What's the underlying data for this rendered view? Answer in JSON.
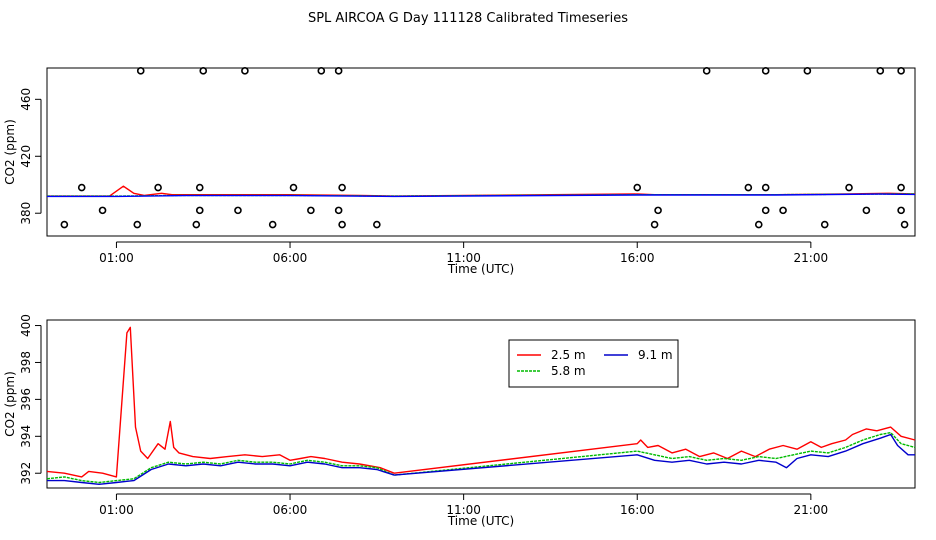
{
  "title": "SPL AIRCOA G  Day 111128  Calibrated Timeseries",
  "chart_data": [
    {
      "type": "scatter",
      "title": "SPL AIRCOA G  Day 111128  Calibrated Timeseries",
      "xlabel": "Time (UTC)",
      "ylabel": "CO2 (ppm)",
      "xlim": [
        -1,
        24
      ],
      "ylim": [
        364,
        482
      ],
      "xticks": [
        1,
        6,
        11,
        16,
        21
      ],
      "xtick_labels": [
        "01:00",
        "06:00",
        "11:00",
        "16:00",
        "21:00"
      ],
      "yticks": [
        380,
        420,
        460
      ],
      "ytick_labels": [
        "380",
        "420",
        "460"
      ],
      "outliers": {
        "x": [
          1.7,
          3.5,
          4.7,
          6.9,
          7.4,
          0.0,
          2.2,
          3.4,
          6.1,
          7.5,
          0.6,
          3.4,
          4.5,
          6.6,
          7.4,
          8.5,
          18.0,
          19.7,
          20.9,
          23.0,
          23.6,
          16.0,
          19.2,
          19.7,
          22.1,
          23.6,
          16.6,
          19.7,
          20.2,
          22.6,
          23.6,
          16.5,
          19.5,
          21.4,
          23.7
        ],
        "y": [
          480,
          480,
          480,
          480,
          480,
          398,
          398,
          398,
          398,
          398,
          382,
          382,
          382,
          382,
          382,
          372,
          480,
          480,
          480,
          480,
          480,
          398,
          398,
          398,
          398,
          398,
          382,
          382,
          382,
          382,
          382,
          372,
          372,
          372,
          372
        ]
      },
      "outliers_extra": {
        "x": [
          -0.5,
          1.6,
          3.3,
          5.5,
          7.5
        ],
        "y": [
          372,
          372,
          372,
          372,
          372
        ]
      },
      "series": [
        {
          "name": "2.5 m",
          "color": "#ff0000",
          "x": [
            -1.0,
            0.0,
            0.5,
            0.8,
            1.2,
            1.5,
            1.8,
            2.3,
            2.6,
            3.0,
            4.0,
            6.0,
            8.0,
            9.0,
            16.0,
            16.5,
            18.0,
            20.0,
            22.0,
            23.2,
            24.0
          ],
          "y": [
            392,
            392,
            392,
            392,
            399,
            394,
            392.5,
            394,
            393,
            393,
            393,
            393,
            392.5,
            392,
            393.5,
            393,
            393,
            393,
            393.5,
            394,
            393.5
          ]
        },
        {
          "name": "5.8 m",
          "color": "#00bb00",
          "x": [
            -1.0,
            1.0,
            3.0,
            6.0,
            9.0,
            16.0,
            20.0,
            23.0,
            24.0
          ],
          "y": [
            392,
            392,
            392.5,
            392.5,
            392,
            393,
            393,
            393.5,
            393.5
          ]
        },
        {
          "name": "9.1 m",
          "color": "#0000ff",
          "x": [
            -1.0,
            1.0,
            3.0,
            6.0,
            9.0,
            16.0,
            20.0,
            23.0,
            24.0
          ],
          "y": [
            391.8,
            391.8,
            392.4,
            392.4,
            391.8,
            392.8,
            392.8,
            393.4,
            393.2
          ]
        }
      ]
    },
    {
      "type": "line",
      "xlabel": "Time (UTC)",
      "ylabel": "CO2 (ppm)",
      "xlim": [
        -1,
        24
      ],
      "ylim": [
        391.2,
        400.3
      ],
      "xticks": [
        1,
        6,
        11,
        16,
        21
      ],
      "xtick_labels": [
        "01:00",
        "06:00",
        "11:00",
        "16:00",
        "21:00"
      ],
      "yticks": [
        392,
        394,
        396,
        398,
        400
      ],
      "ytick_labels": [
        "392",
        "394",
        "396",
        "398",
        "400"
      ],
      "legend_position": "top-center",
      "series": [
        {
          "name": "2.5 m",
          "color": "#ff0000",
          "x": [
            -1.0,
            -0.5,
            0.0,
            0.2,
            0.6,
            1.0,
            1.3,
            1.4,
            1.55,
            1.7,
            1.9,
            2.2,
            2.4,
            2.55,
            2.65,
            2.8,
            3.2,
            3.7,
            4.2,
            4.7,
            5.2,
            5.7,
            6.0,
            6.3,
            6.6,
            7.0,
            7.5,
            8.0,
            8.3,
            8.6,
            9.0,
            16.0,
            16.1,
            16.3,
            16.6,
            17.0,
            17.4,
            17.8,
            18.2,
            18.6,
            19.0,
            19.4,
            19.8,
            20.2,
            20.6,
            21.0,
            21.3,
            21.6,
            22.0,
            22.2,
            22.6,
            22.9,
            23.3,
            23.6,
            24.0
          ],
          "y": [
            392.1,
            392.0,
            391.8,
            392.1,
            392.0,
            391.8,
            399.6,
            399.9,
            394.5,
            393.2,
            392.8,
            393.6,
            393.3,
            394.8,
            393.4,
            393.1,
            392.9,
            392.8,
            392.9,
            393.0,
            392.9,
            393.0,
            392.7,
            392.8,
            392.9,
            392.8,
            392.6,
            392.5,
            392.4,
            392.3,
            392.0,
            393.6,
            393.8,
            393.4,
            393.5,
            393.1,
            393.3,
            392.9,
            393.1,
            392.8,
            393.2,
            392.9,
            393.3,
            393.5,
            393.3,
            393.7,
            393.4,
            393.6,
            393.8,
            394.1,
            394.4,
            394.3,
            394.5,
            394.0,
            393.8
          ]
        },
        {
          "name": "5.8 m",
          "color": "#00bb00",
          "x": [
            -1.0,
            -0.5,
            0.0,
            0.5,
            1.0,
            1.5,
            2.0,
            2.5,
            3.0,
            3.5,
            4.0,
            4.5,
            5.0,
            5.5,
            6.0,
            6.5,
            7.0,
            7.5,
            8.0,
            8.5,
            9.0,
            16.0,
            16.5,
            17.0,
            17.5,
            18.0,
            18.5,
            19.0,
            19.5,
            20.0,
            20.5,
            21.0,
            21.5,
            22.0,
            22.5,
            23.0,
            23.3,
            23.6,
            24.0
          ],
          "y": [
            391.7,
            391.8,
            391.6,
            391.5,
            391.6,
            391.7,
            392.3,
            392.6,
            392.5,
            392.6,
            392.5,
            392.7,
            392.6,
            392.6,
            392.5,
            392.7,
            392.6,
            392.4,
            392.4,
            392.3,
            391.9,
            393.2,
            393.0,
            392.8,
            392.9,
            392.7,
            392.8,
            392.7,
            392.9,
            392.8,
            393.0,
            393.2,
            393.1,
            393.4,
            393.8,
            394.1,
            394.2,
            393.6,
            393.4
          ]
        },
        {
          "name": "9.1 m",
          "color": "#0000cc",
          "x": [
            -1.0,
            -0.5,
            0.0,
            0.5,
            1.0,
            1.5,
            2.0,
            2.5,
            3.0,
            3.5,
            4.0,
            4.5,
            5.0,
            5.5,
            6.0,
            6.5,
            7.0,
            7.5,
            8.0,
            8.5,
            9.0,
            16.0,
            16.5,
            17.0,
            17.5,
            18.0,
            18.5,
            19.0,
            19.5,
            20.0,
            20.3,
            20.6,
            21.0,
            21.5,
            22.0,
            22.5,
            23.0,
            23.3,
            23.5,
            23.8,
            24.0
          ],
          "y": [
            391.6,
            391.6,
            391.5,
            391.4,
            391.5,
            391.6,
            392.2,
            392.5,
            392.4,
            392.5,
            392.4,
            392.6,
            392.5,
            392.5,
            392.4,
            392.6,
            392.5,
            392.3,
            392.3,
            392.2,
            391.9,
            393.0,
            392.7,
            392.6,
            392.7,
            392.5,
            392.6,
            392.5,
            392.7,
            392.6,
            392.3,
            392.8,
            393.0,
            392.9,
            393.2,
            393.6,
            393.9,
            394.1,
            393.5,
            393.0,
            393.0
          ]
        }
      ]
    }
  ]
}
